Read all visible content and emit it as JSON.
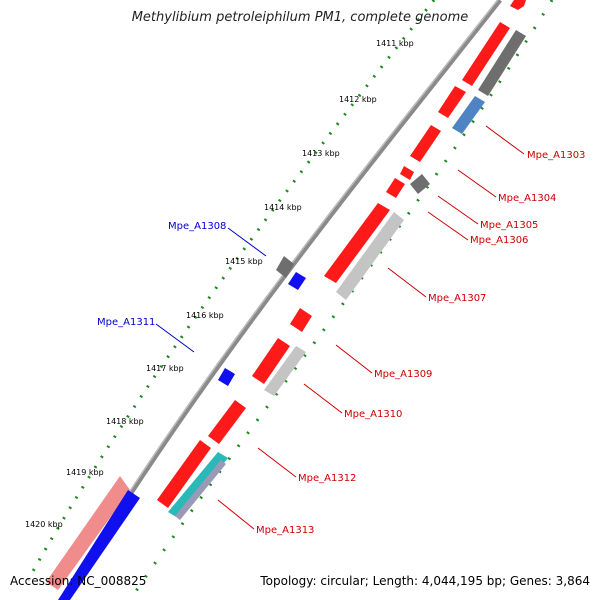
{
  "title": "Methylibium petroleiphilum PM1, complete genome",
  "footer": {
    "accession": "Accession: NC_008825",
    "summary": "Topology: circular; Length: 4,044,195 bp; Genes: 3,864"
  },
  "colors": {
    "backbone": "#808080",
    "ruler": "#1e8a1e",
    "forward_gene": "#ff1a1a",
    "grey_gene": "#6e6e6e",
    "blue_gene": "#1010ee",
    "steelblue_gene": "#4f84c4",
    "lightgrey_gene": "#c4c4c4",
    "pink_gene": "#f08c8c",
    "teal_gene": "#2bb8b8",
    "label_red": "#cc0000",
    "label_blue": "#0000cc"
  },
  "ruler_ticks": [
    "1411 kbp",
    "1412 kbp",
    "1413 kbp",
    "1414 kbp",
    "1415 kbp",
    "1416 kbp",
    "1417 kbp",
    "1418 kbp",
    "1419 kbp",
    "1420 kbp"
  ],
  "gene_labels_right": [
    "Mpe_A1303",
    "Mpe_A1304",
    "Mpe_A1305",
    "Mpe_A1306",
    "Mpe_A1307",
    "Mpe_A1309",
    "Mpe_A1310",
    "Mpe_A1312",
    "Mpe_A1313"
  ],
  "gene_labels_left": [
    "Mpe_A1308",
    "Mpe_A1311"
  ]
}
